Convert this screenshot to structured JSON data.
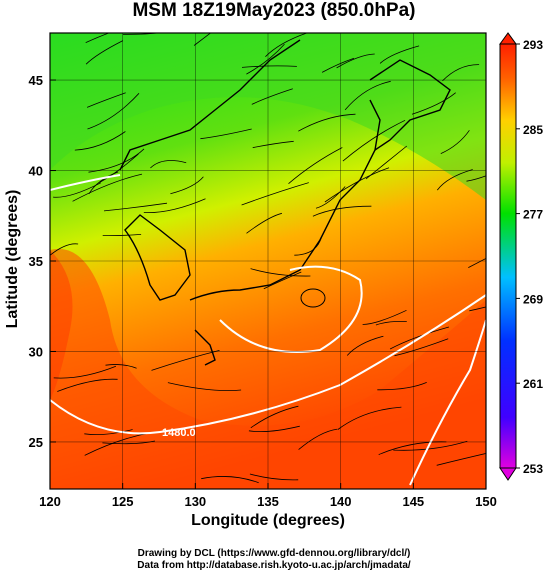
{
  "chart_data": {
    "type": "heatmap",
    "title": "MSM 18Z19May2023 (850.0hPa)",
    "xlabel": "Longitude (degrees)",
    "ylabel": "Latitude  (degrees)",
    "xlim": [
      120,
      150
    ],
    "ylim": [
      22.4,
      47.6
    ],
    "x_ticks": [
      120,
      125,
      130,
      135,
      140,
      145,
      150
    ],
    "y_ticks": [
      25,
      30,
      35,
      40,
      45
    ],
    "colorbar": {
      "min": 253,
      "max": 293,
      "ticks": [
        253,
        261,
        269,
        277,
        285,
        293
      ],
      "position": "right"
    },
    "contour_labels": [
      {
        "text": "1480.0",
        "lon": 129.5,
        "lat": 24.2
      }
    ],
    "grid": true
  },
  "credits": {
    "line1": "Drawing by DCL (https://www.gfd-dennou.org/library/dcl/)",
    "line2": "Data from http://database.rish.kyoto-u.ac.jp/arch/jmadata/"
  },
  "colors": {
    "cold": "#ff00ff",
    "cool": "#0000ff",
    "mid": "#00ff00",
    "warm": "#ffff00",
    "hot": "#ff0000"
  }
}
